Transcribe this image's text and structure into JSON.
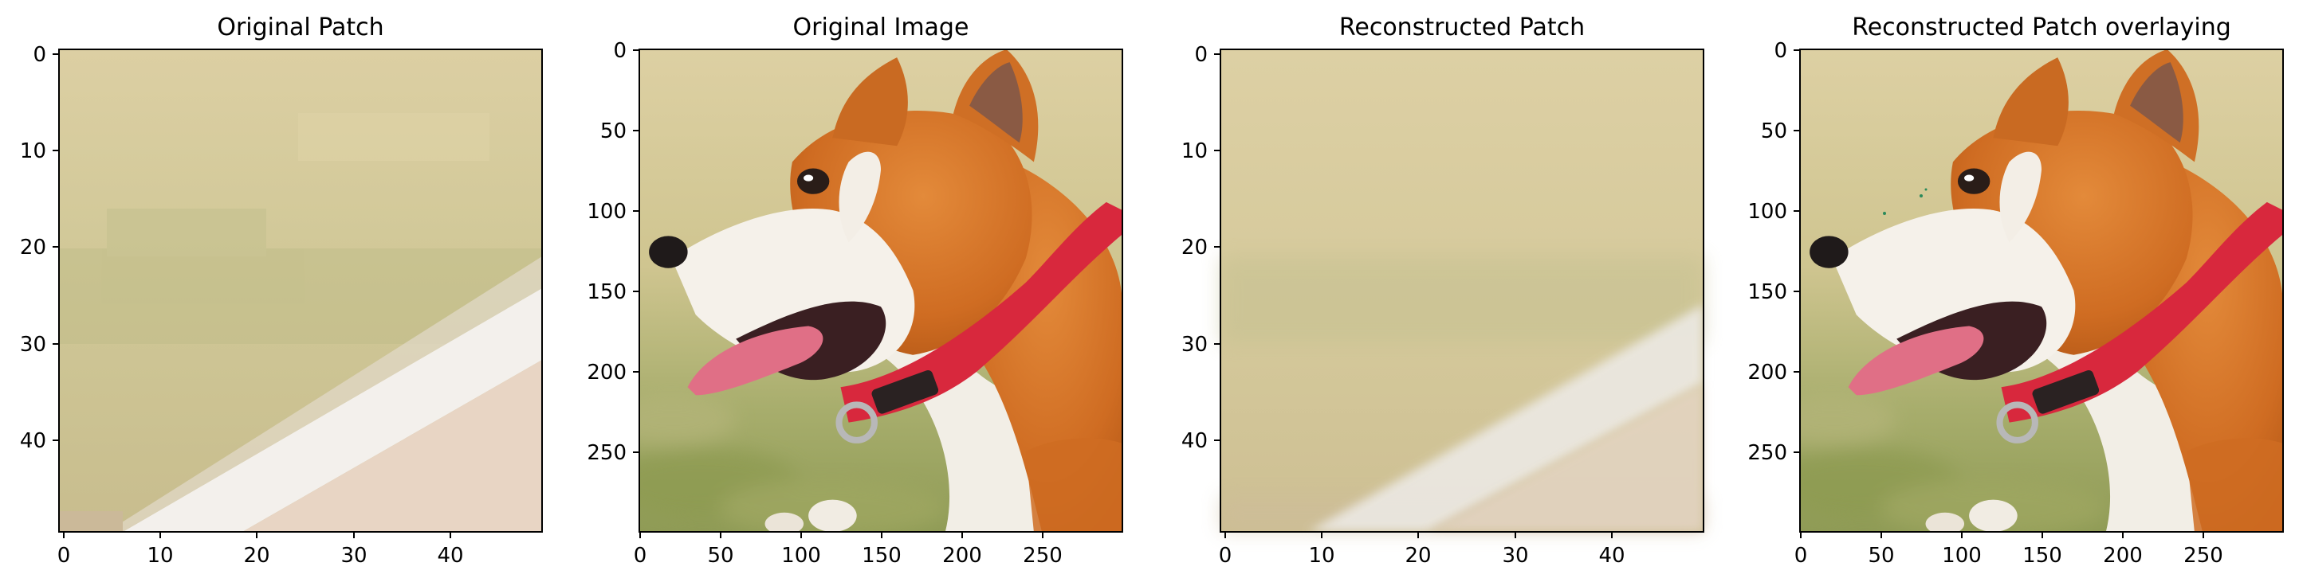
{
  "figure": {
    "panels": [
      {
        "title": "Original Patch",
        "image": "original-patch",
        "x_range": [
          0,
          50
        ],
        "y_range": [
          0,
          50
        ],
        "x_ticks": [
          0,
          10,
          20,
          30,
          40
        ],
        "y_ticks": [
          0,
          10,
          20,
          30,
          40
        ]
      },
      {
        "title": "Original Image",
        "image": "original-image",
        "x_range": [
          0,
          300
        ],
        "y_range": [
          0,
          300
        ],
        "x_ticks": [
          0,
          50,
          100,
          150,
          200,
          250
        ],
        "y_ticks": [
          0,
          50,
          100,
          150,
          200,
          250
        ]
      },
      {
        "title": "Reconstructed Patch",
        "image": "reconstructed-patch",
        "x_range": [
          0,
          50
        ],
        "y_range": [
          0,
          50
        ],
        "x_ticks": [
          0,
          10,
          20,
          30,
          40
        ],
        "y_ticks": [
          0,
          10,
          20,
          30,
          40
        ]
      },
      {
        "title": "Reconstructed Patch overlaying",
        "image": "reconstructed-overlay",
        "x_range": [
          0,
          300
        ],
        "y_range": [
          0,
          300
        ],
        "x_ticks": [
          0,
          50,
          100,
          150,
          200,
          250
        ],
        "y_ticks": [
          0,
          50,
          100,
          150,
          200,
          250
        ]
      }
    ]
  },
  "colors": {
    "background": "#ffffff",
    "grass_light": "#d8c99a",
    "grass_green": "#b7b27d",
    "fur_orange": "#d9792a",
    "fur_white": "#f4f0ea",
    "collar_red": "#d8283d",
    "tongue": "#e06f86"
  }
}
